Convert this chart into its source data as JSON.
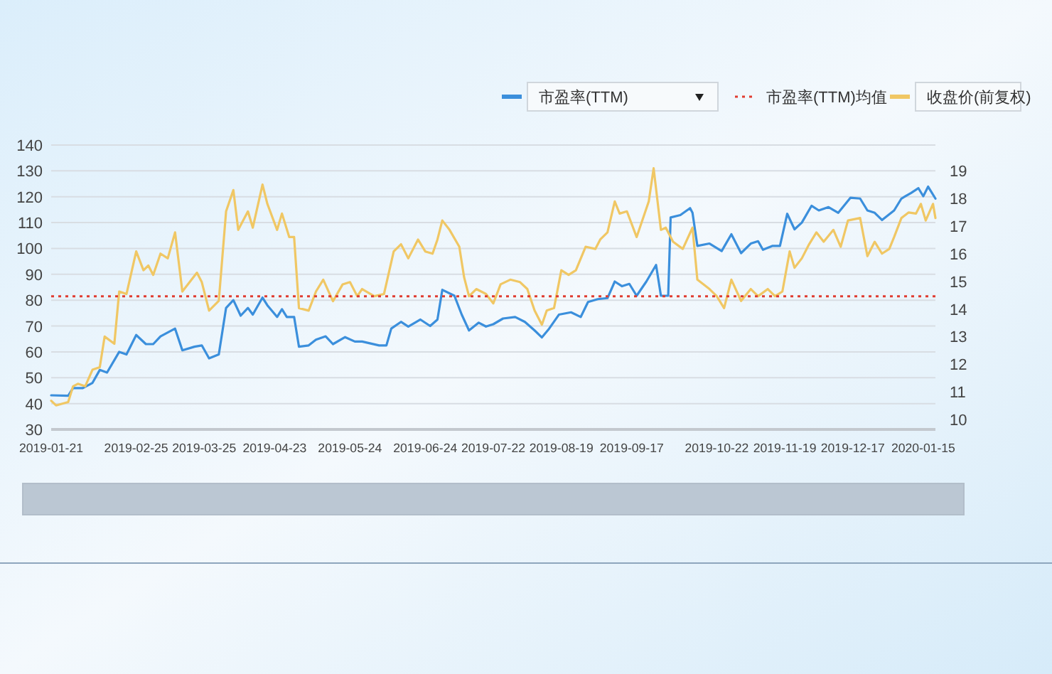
{
  "chart_data": {
    "type": "line",
    "legend": "top right",
    "grid": "y",
    "marker": "none",
    "line_style": "solid",
    "xlim": [
      "2019-01-21",
      "2020-01-20"
    ],
    "xticks": [
      "2019-01-21",
      "2019-02-25",
      "2019-03-25",
      "2019-04-23",
      "2019-05-24",
      "2019-06-24",
      "2019-07-22",
      "2019-08-19",
      "2019-09-17",
      "2019-10-22",
      "2019-11-19",
      "2019-12-17",
      "2020-01-15"
    ],
    "ylim": [
      30,
      140
    ],
    "yticks": [
      30,
      40,
      50,
      60,
      70,
      80,
      90,
      100,
      110,
      120,
      130,
      140
    ],
    "y2lim": [
      9.64,
      19.93
    ],
    "y2ticks": [
      10,
      11,
      12,
      13,
      14,
      15,
      16,
      17,
      18,
      19
    ],
    "ref_lines": [
      {
        "axis": "y",
        "value": 81.5,
        "label": "市盈率(TTM)均值",
        "color": "#e03c31",
        "line_style": "dotted"
      }
    ],
    "series": [
      {
        "name": "市盈率(TTM)",
        "color": "#3b8fdc",
        "x": [
          "2019-01-21",
          "2019-01-28",
          "2019-01-30",
          "2019-02-03",
          "2019-02-07",
          "2019-02-10",
          "2019-02-13",
          "2019-02-18",
          "2019-02-21",
          "2019-02-25",
          "2019-03-01",
          "2019-03-04",
          "2019-03-07",
          "2019-03-10",
          "2019-03-13",
          "2019-03-16",
          "2019-03-21",
          "2019-03-24",
          "2019-03-27",
          "2019-03-31",
          "2019-04-03",
          "2019-04-06",
          "2019-04-09",
          "2019-04-12",
          "2019-04-14",
          "2019-04-18",
          "2019-04-20",
          "2019-04-24",
          "2019-04-26",
          "2019-04-28",
          "2019-05-01",
          "2019-05-03",
          "2019-05-07",
          "2019-05-10",
          "2019-05-14",
          "2019-05-17",
          "2019-05-22",
          "2019-05-26",
          "2019-05-29",
          "2019-06-05",
          "2019-06-08",
          "2019-06-10",
          "2019-06-14",
          "2019-06-17",
          "2019-06-22",
          "2019-06-26",
          "2019-06-29",
          "2019-07-01",
          "2019-07-06",
          "2019-07-09",
          "2019-07-12",
          "2019-07-16",
          "2019-07-19",
          "2019-07-22",
          "2019-07-26",
          "2019-07-31",
          "2019-08-04",
          "2019-08-08",
          "2019-08-11",
          "2019-08-14",
          "2019-08-18",
          "2019-08-23",
          "2019-08-27",
          "2019-08-30",
          "2019-09-03",
          "2019-09-07",
          "2019-09-10",
          "2019-09-13",
          "2019-09-16",
          "2019-09-19",
          "2019-09-23",
          "2019-09-27",
          "2019-09-29",
          "2019-10-02",
          "2019-10-03",
          "2019-10-07",
          "2019-10-11",
          "2019-10-12",
          "2019-10-14",
          "2019-10-19",
          "2019-10-24",
          "2019-10-28",
          "2019-11-01",
          "2019-11-05",
          "2019-11-08",
          "2019-11-10",
          "2019-11-14",
          "2019-11-17",
          "2019-11-20",
          "2019-11-23",
          "2019-11-26",
          "2019-11-30",
          "2019-12-03",
          "2019-12-07",
          "2019-12-11",
          "2019-12-16",
          "2019-12-20",
          "2019-12-23",
          "2019-12-26",
          "2019-12-29",
          "2020-01-03",
          "2020-01-06",
          "2020-01-10",
          "2020-01-13",
          "2020-01-15",
          "2020-01-17",
          "2020-01-20"
        ],
        "values": [
          43.2,
          43,
          46,
          46,
          48,
          53,
          52,
          60,
          59,
          66.5,
          63,
          63,
          66,
          67.5,
          69,
          60.6,
          62,
          62.5,
          57.5,
          59,
          77,
          80,
          74,
          77,
          74.4,
          81,
          78,
          73.5,
          76.5,
          73.5,
          73.5,
          62,
          62.5,
          64.7,
          66,
          63,
          65.7,
          64,
          64,
          62.5,
          62.5,
          69,
          71.6,
          69.8,
          72.5,
          70,
          72.5,
          84,
          81.7,
          74.4,
          68.3,
          71.3,
          69.8,
          70.7,
          72.9,
          73.5,
          71.6,
          68.3,
          65.6,
          69,
          74.4,
          75.3,
          73.5,
          79.3,
          80.4,
          80.8,
          87.2,
          85.4,
          86.3,
          81.7,
          87.2,
          93.6,
          81.7,
          81.7,
          112,
          112.9,
          115.6,
          113.8,
          101,
          101.9,
          99,
          105.5,
          98.2,
          101.9,
          102.8,
          99.5,
          101,
          101,
          113.4,
          107.4,
          110,
          116.5,
          114.7,
          116,
          113.8,
          119.6,
          119.3,
          114.7,
          113.8,
          111,
          114.7,
          119.3,
          121.5,
          123.3,
          120.2,
          123.9,
          119.3
        ]
      },
      {
        "name": "收盘价(前复权)",
        "color": "#f0c764",
        "axis": "y2",
        "x": [
          "2019-01-21",
          "2019-01-23",
          "2019-01-28",
          "2019-01-30",
          "2019-02-01",
          "2019-02-04",
          "2019-02-07",
          "2019-02-10",
          "2019-02-12",
          "2019-02-16",
          "2019-02-18",
          "2019-02-21",
          "2019-02-25",
          "2019-02-28",
          "2019-03-02",
          "2019-03-04",
          "2019-03-07",
          "2019-03-10",
          "2019-03-13",
          "2019-03-16",
          "2019-03-19",
          "2019-03-22",
          "2019-03-24",
          "2019-03-27",
          "2019-03-31",
          "2019-04-03",
          "2019-04-06",
          "2019-04-08",
          "2019-04-12",
          "2019-04-14",
          "2019-04-18",
          "2019-04-20",
          "2019-04-24",
          "2019-04-26",
          "2019-04-29",
          "2019-05-01",
          "2019-05-03",
          "2019-05-07",
          "2019-05-10",
          "2019-05-13",
          "2019-05-17",
          "2019-05-21",
          "2019-05-24",
          "2019-05-27",
          "2019-05-29",
          "2019-06-03",
          "2019-06-07",
          "2019-06-11",
          "2019-06-14",
          "2019-06-17",
          "2019-06-21",
          "2019-06-24",
          "2019-06-27",
          "2019-06-29",
          "2019-07-01",
          "2019-07-04",
          "2019-07-08",
          "2019-07-10",
          "2019-07-12",
          "2019-07-15",
          "2019-07-19",
          "2019-07-22",
          "2019-07-25",
          "2019-07-29",
          "2019-08-02",
          "2019-08-05",
          "2019-08-08",
          "2019-08-11",
          "2019-08-13",
          "2019-08-16",
          "2019-08-19",
          "2019-08-22",
          "2019-08-25",
          "2019-08-29",
          "2019-09-02",
          "2019-09-04",
          "2019-09-07",
          "2019-09-10",
          "2019-09-12",
          "2019-09-15",
          "2019-09-19",
          "2019-09-24",
          "2019-09-26",
          "2019-09-29",
          "2019-10-01",
          "2019-10-04",
          "2019-10-08",
          "2019-10-12",
          "2019-10-14",
          "2019-10-19",
          "2019-10-22",
          "2019-10-25",
          "2019-10-28",
          "2019-11-01",
          "2019-11-05",
          "2019-11-08",
          "2019-11-12",
          "2019-11-15",
          "2019-11-18",
          "2019-11-21",
          "2019-11-23",
          "2019-11-26",
          "2019-11-29",
          "2019-12-02",
          "2019-12-05",
          "2019-12-09",
          "2019-12-12",
          "2019-12-15",
          "2019-12-20",
          "2019-12-23",
          "2019-12-26",
          "2019-12-29",
          "2020-01-01",
          "2020-01-03",
          "2020-01-06",
          "2020-01-09",
          "2020-01-12",
          "2020-01-14",
          "2020-01-16",
          "2020-01-19",
          "2020-01-20"
        ],
        "values": [
          10.68,
          10.51,
          10.63,
          11.2,
          11.29,
          11.2,
          11.8,
          11.89,
          13.0,
          12.74,
          14.63,
          14.54,
          16.08,
          15.4,
          15.57,
          15.23,
          16.0,
          15.83,
          16.77,
          14.63,
          14.97,
          15.31,
          14.97,
          13.94,
          14.29,
          17.53,
          18.3,
          16.86,
          17.53,
          16.94,
          18.5,
          17.8,
          16.86,
          17.45,
          16.6,
          16.6,
          14.03,
          13.94,
          14.63,
          15.06,
          14.28,
          14.89,
          14.97,
          14.46,
          14.72,
          14.46,
          14.54,
          16.08,
          16.34,
          15.83,
          16.51,
          16.08,
          16.0,
          16.51,
          17.2,
          16.86,
          16.25,
          15.14,
          14.46,
          14.72,
          14.54,
          14.2,
          14.89,
          15.06,
          14.97,
          14.72,
          13.94,
          13.43,
          13.94,
          14.03,
          15.4,
          15.23,
          15.4,
          16.25,
          16.17,
          16.51,
          16.77,
          17.89,
          17.45,
          17.53,
          16.6,
          17.89,
          19.09,
          16.86,
          16.94,
          16.43,
          16.17,
          16.94,
          15.06,
          14.72,
          14.46,
          14.03,
          15.06,
          14.29,
          14.72,
          14.46,
          14.72,
          14.46,
          14.63,
          16.08,
          15.49,
          15.83,
          16.34,
          16.77,
          16.43,
          16.86,
          16.25,
          17.2,
          17.29,
          15.91,
          16.43,
          16.0,
          16.17,
          16.6,
          17.29,
          17.49,
          17.45,
          17.8,
          17.2,
          17.8,
          17.29
        ]
      }
    ]
  }
}
